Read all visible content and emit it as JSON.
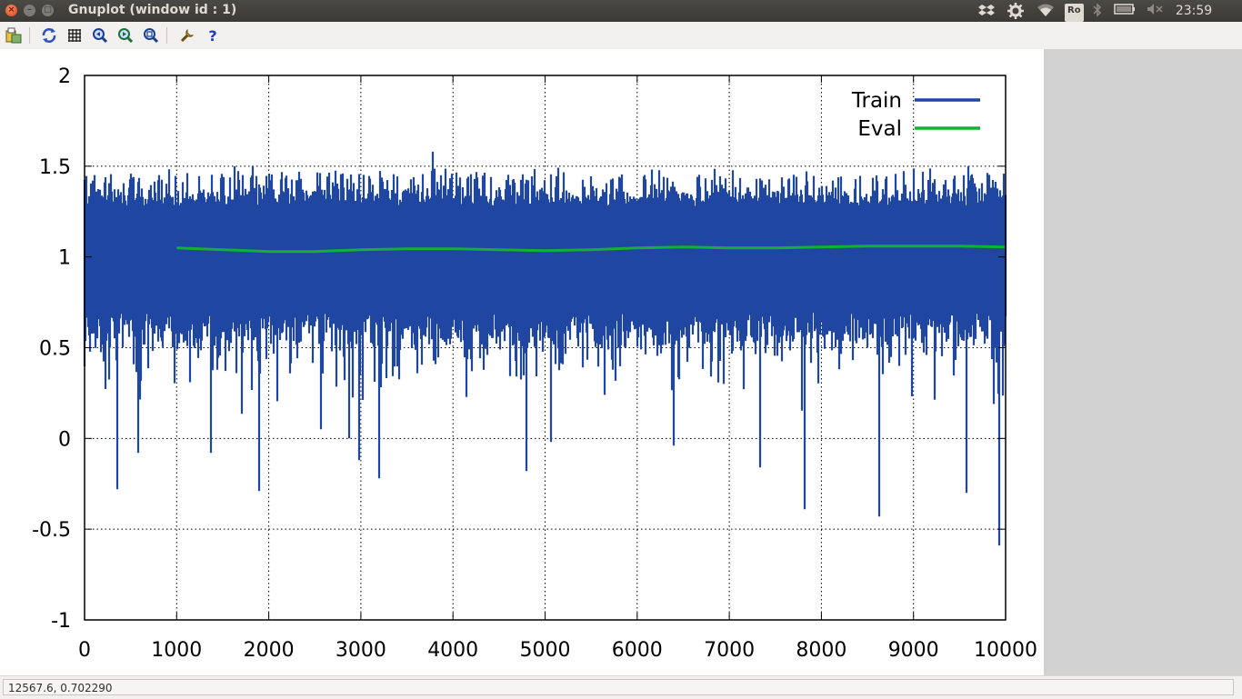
{
  "window": {
    "title": "Gnuplot (window id : 1)",
    "close_glyph": "×",
    "minimize_glyph": "–",
    "maximize_glyph": "□"
  },
  "tray": {
    "keyboard_indicator": "Ro",
    "clock": "23:59",
    "icons": [
      "dropbox-icon",
      "settings-icon",
      "wifi-icon",
      "keyboard-layout-icon",
      "bluetooth-icon",
      "battery-icon",
      "volume-muted-icon"
    ]
  },
  "toolbar": {
    "buttons": [
      "export-icon",
      "replot-icon",
      "grid-icon",
      "zoom-previous-icon",
      "zoom-next-icon",
      "autoscale-icon",
      "configuration-icon",
      "help-icon"
    ]
  },
  "status": {
    "coordinates": "12567.6,  0.702290"
  },
  "colors": {
    "train": "#1f46a0",
    "eval": "#14b035",
    "right_pane": "#d2d2d2"
  },
  "chart_data": {
    "type": "line",
    "title": "",
    "xlabel": "",
    "ylabel": "",
    "xlim": [
      0,
      10000
    ],
    "ylim": [
      -1,
      2
    ],
    "x_ticks": [
      "0",
      "1000",
      "2000",
      "3000",
      "4000",
      "5000",
      "6000",
      "7000",
      "8000",
      "9000",
      "10000"
    ],
    "y_ticks": [
      "2",
      "1.5",
      "1",
      "0.5",
      "0",
      "-0.5",
      "-1"
    ],
    "grid": true,
    "legend_position": "top-right",
    "series": [
      {
        "name": "Train",
        "style": "noisy",
        "x_range": [
          0,
          10000
        ],
        "center": 1.0,
        "typical_band": [
          0.62,
          1.42
        ],
        "max": 1.58,
        "min": -0.59,
        "notable_spikes": [
          {
            "x": 360,
            "y": -0.28
          },
          {
            "x": 580,
            "y": -0.08
          },
          {
            "x": 1370,
            "y": -0.08
          },
          {
            "x": 1900,
            "y": -0.29
          },
          {
            "x": 2570,
            "y": 0.05
          },
          {
            "x": 2870,
            "y": 0.0
          },
          {
            "x": 2980,
            "y": -0.12
          },
          {
            "x": 3200,
            "y": -0.22
          },
          {
            "x": 3780,
            "y": 1.58
          },
          {
            "x": 4800,
            "y": -0.18
          },
          {
            "x": 5060,
            "y": -0.02
          },
          {
            "x": 6400,
            "y": -0.04
          },
          {
            "x": 7330,
            "y": -0.16
          },
          {
            "x": 7820,
            "y": -0.39
          },
          {
            "x": 8630,
            "y": -0.43
          },
          {
            "x": 9580,
            "y": -0.3
          },
          {
            "x": 9930,
            "y": -0.59
          }
        ]
      },
      {
        "name": "Eval",
        "x": [
          1000,
          1500,
          2000,
          2500,
          3000,
          3500,
          4000,
          4500,
          5000,
          5500,
          6000,
          6500,
          7000,
          7500,
          8000,
          8500,
          9000,
          9500,
          10000
        ],
        "values": [
          1.05,
          1.04,
          1.03,
          1.03,
          1.04,
          1.045,
          1.045,
          1.04,
          1.035,
          1.04,
          1.05,
          1.055,
          1.05,
          1.05,
          1.055,
          1.06,
          1.06,
          1.06,
          1.055
        ]
      }
    ]
  }
}
